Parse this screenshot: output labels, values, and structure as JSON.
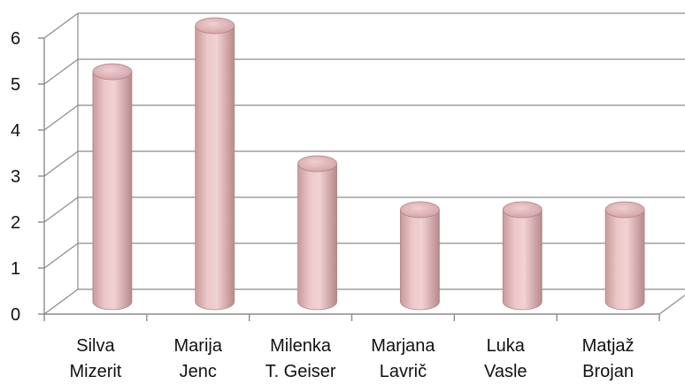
{
  "chart_data": {
    "type": "bar",
    "categories": [
      [
        "Silva",
        "Mizerit"
      ],
      [
        "Marija",
        "Jenc"
      ],
      [
        "Milenka",
        "T. Geiser"
      ],
      [
        "Marjana",
        "Lavrič"
      ],
      [
        "Luka",
        "Vasle"
      ],
      [
        "Matjaž",
        "Brojan"
      ]
    ],
    "values": [
      5,
      6,
      3,
      2,
      2,
      2
    ],
    "ylim": [
      0,
      6
    ],
    "yticks": [
      "0",
      "1",
      "2",
      "3",
      "4",
      "5",
      "6"
    ],
    "grid": true,
    "legend": "none",
    "bar_color": "#e3b4b6",
    "bar_shape": "cylinder-3d"
  }
}
